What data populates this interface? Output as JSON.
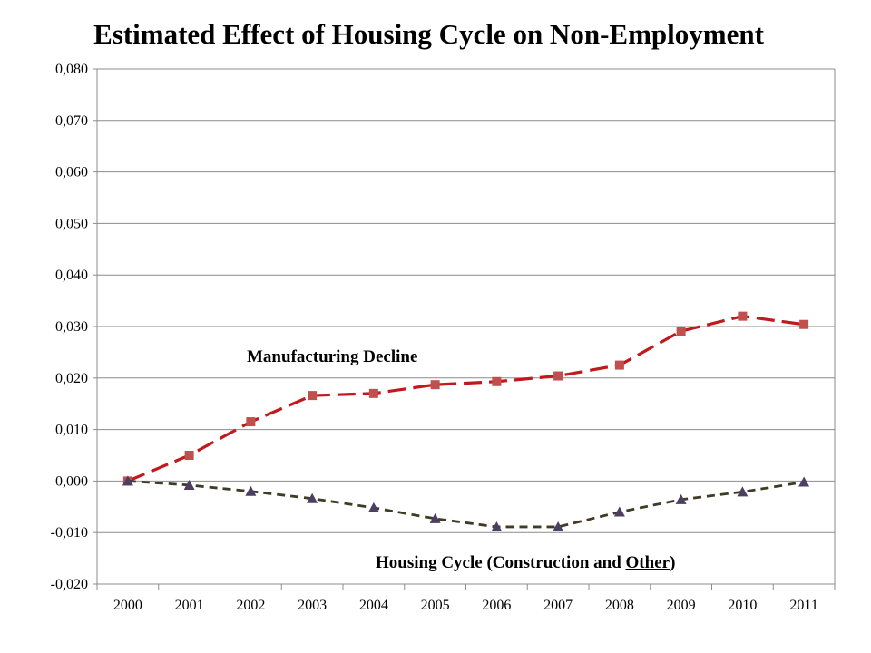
{
  "chart_data": {
    "type": "line",
    "title": "Estimated Effect of Housing Cycle on Non-Employment",
    "xlabel": "",
    "ylabel": "",
    "categories": [
      "2000",
      "2001",
      "2002",
      "2003",
      "2004",
      "2005",
      "2006",
      "2007",
      "2008",
      "2009",
      "2010",
      "2011"
    ],
    "ylim": [
      -0.02,
      0.08
    ],
    "yticks": [
      "-0,020",
      "-0,010",
      "0,000",
      "0,010",
      "0,020",
      "0,030",
      "0,040",
      "0,050",
      "0,060",
      "0,070",
      "0,080"
    ],
    "grid": true,
    "series": [
      {
        "name": "Manufacturing Decline",
        "color": "#c0191e",
        "marker": "square",
        "values": [
          0.0,
          0.005,
          0.0115,
          0.0166,
          0.017,
          0.0187,
          0.0193,
          0.0204,
          0.0225,
          0.0291,
          0.032,
          0.0304
        ]
      },
      {
        "name": "Housing Cycle (Construction and Other)",
        "color": "#403b24",
        "marker": "triangle",
        "values": [
          0.0,
          -0.0008,
          -0.002,
          -0.0034,
          -0.0052,
          -0.0073,
          -0.0089,
          -0.0089,
          -0.006,
          -0.0036,
          -0.0021,
          -0.0002
        ]
      }
    ],
    "annotations": [
      {
        "text": "Manufacturing Decline",
        "series": 0
      },
      {
        "text_parts": [
          "Housing Cycle (Construction and ",
          "Other",
          ")"
        ],
        "series": 1
      }
    ]
  }
}
